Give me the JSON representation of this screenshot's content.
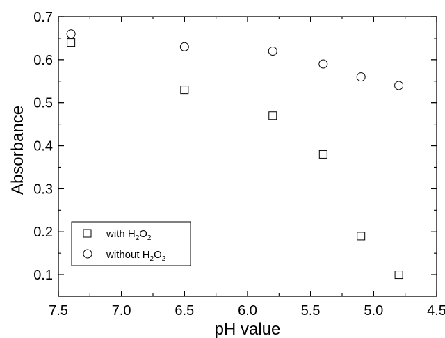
{
  "chart_data": {
    "type": "scatter",
    "title": "",
    "xlabel": "pH value",
    "ylabel": "Absorbance",
    "xlim": [
      7.5,
      4.5
    ],
    "ylim": [
      0.05,
      0.7
    ],
    "x_reversed": true,
    "grid": false,
    "legend_placement": "bottom-left",
    "xticks": [
      7.5,
      7.0,
      6.5,
      6.0,
      5.5,
      5.0,
      4.5
    ],
    "yticks": [
      0.1,
      0.2,
      0.3,
      0.4,
      0.5,
      0.6,
      0.7
    ],
    "x": [
      7.4,
      6.5,
      5.8,
      5.4,
      5.1,
      4.8
    ],
    "series": [
      {
        "name": "with H2O2",
        "marker": "square",
        "values": [
          0.64,
          0.53,
          0.47,
          0.38,
          0.19,
          0.1
        ]
      },
      {
        "name": "without H2O2",
        "marker": "circle",
        "values": [
          0.66,
          0.63,
          0.62,
          0.59,
          0.56,
          0.54
        ]
      }
    ],
    "colors": {
      "axis": "#000000",
      "marker": "#000000",
      "background": "#ffffff"
    }
  },
  "legend": {
    "entries": [
      {
        "prefix": "with H",
        "sub1": "2",
        "mid": "O",
        "sub2": "2"
      },
      {
        "prefix": "without H",
        "sub1": "2",
        "mid": "O",
        "sub2": "2"
      }
    ]
  }
}
